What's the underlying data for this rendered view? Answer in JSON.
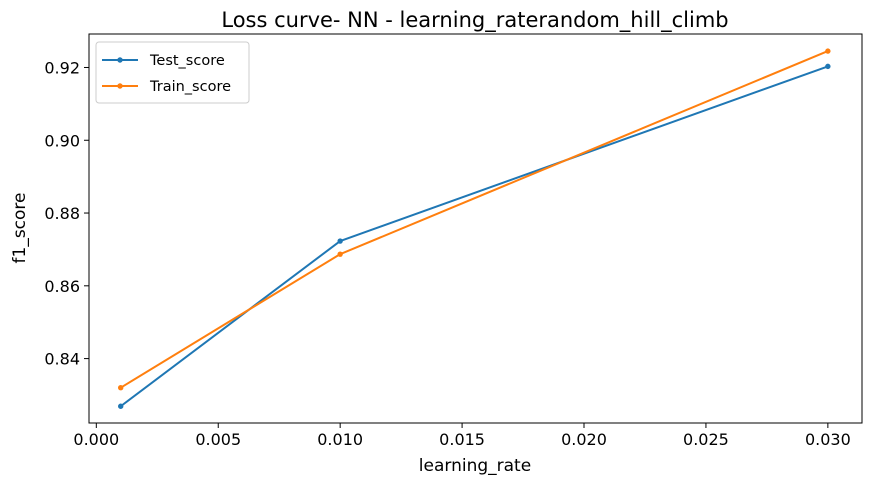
{
  "chart_data": {
    "type": "line",
    "title": "Loss curve- NN - learning_raterandom_hill_climb",
    "xlabel": "learning_rate",
    "ylabel": "f1_score",
    "x": [
      0.001,
      0.01,
      0.03
    ],
    "xlim": [
      -0.0003,
      0.0314
    ],
    "ylim": [
      0.8223,
      0.9292
    ],
    "xticks": [
      0.0,
      0.005,
      0.01,
      0.015,
      0.02,
      0.025,
      0.03
    ],
    "xtick_labels": [
      "0.000",
      "0.005",
      "0.010",
      "0.015",
      "0.020",
      "0.025",
      "0.030"
    ],
    "yticks": [
      0.84,
      0.86,
      0.88,
      0.9,
      0.92
    ],
    "ytick_labels": [
      "0.84",
      "0.86",
      "0.88",
      "0.90",
      "0.92"
    ],
    "grid": false,
    "legend_position": "top-left",
    "series": [
      {
        "name": "Test_score",
        "color": "#1f77b4",
        "marker": "circle",
        "values": [
          0.8269,
          0.8723,
          0.9203
        ]
      },
      {
        "name": "Train_score",
        "color": "#ff7f0e",
        "marker": "circle",
        "values": [
          0.832,
          0.8687,
          0.9245
        ]
      }
    ]
  }
}
